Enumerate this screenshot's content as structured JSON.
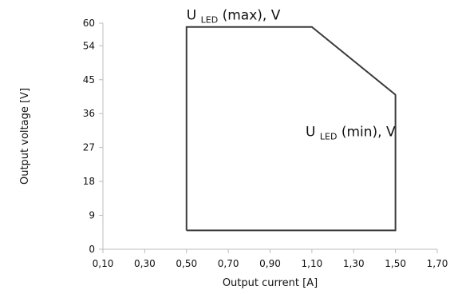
{
  "chart_data": {
    "type": "line",
    "title": "",
    "xlabel": "Output current [A]",
    "ylabel": "Output voltage [V]",
    "xlim": [
      0.1,
      1.7
    ],
    "ylim": [
      0,
      60
    ],
    "x_ticks": [
      0.1,
      0.3,
      0.5,
      0.7,
      0.9,
      1.1,
      1.3,
      1.5,
      1.7
    ],
    "x_tick_labels": [
      "0,10",
      "0,30",
      "0,50",
      "0,70",
      "0,90",
      "1,10",
      "1,30",
      "1,50",
      "1,70"
    ],
    "y_ticks": [
      0,
      9,
      18,
      27,
      36,
      45,
      54,
      60
    ],
    "y_tick_labels": [
      "0",
      "9",
      "18",
      "27",
      "36",
      "45",
      "54",
      "60"
    ],
    "grid": false,
    "series": [
      {
        "x": [
          0.5,
          0.5,
          1.1,
          1.5,
          1.5,
          0.5
        ],
        "y": [
          5,
          59,
          59,
          41,
          5,
          5
        ],
        "color": "#3a3a3a"
      }
    ],
    "annotations": [
      {
        "id": "max",
        "main": "U",
        "sub": "LED",
        "suffix": " (max), V",
        "x": 0.5,
        "y": 61
      },
      {
        "id": "min",
        "main": "U",
        "sub": "LED",
        "suffix": " (min), V",
        "x": 1.5,
        "y": 30
      }
    ]
  }
}
